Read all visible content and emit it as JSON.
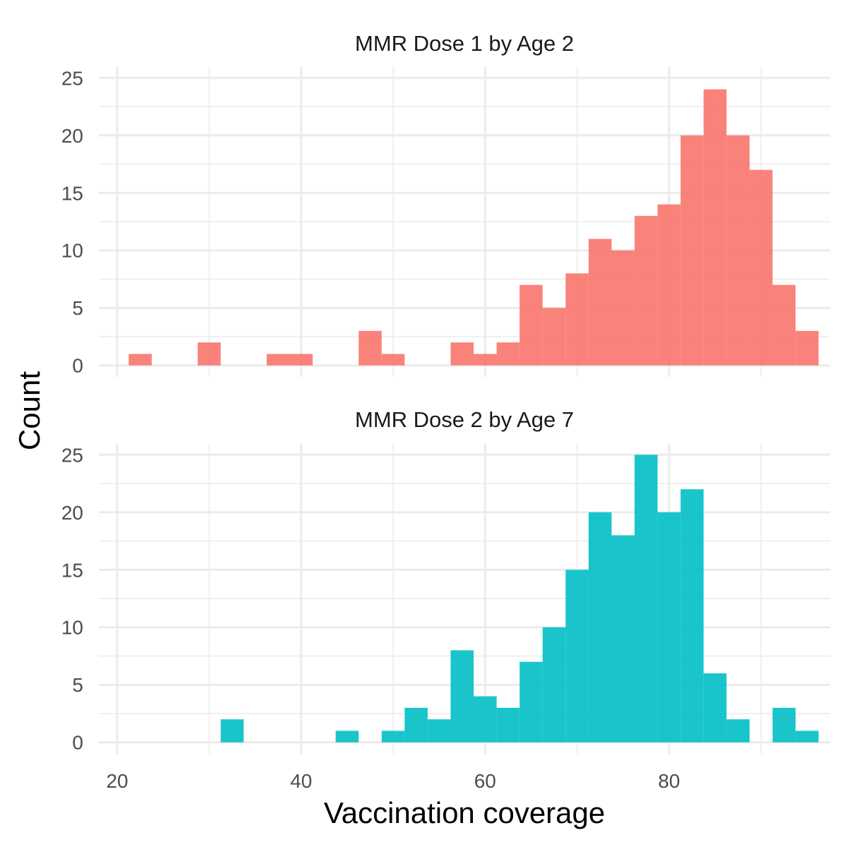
{
  "chart_data": {
    "type": "bar",
    "xlabel": "Vaccination coverage",
    "ylabel": "Count",
    "xlim": [
      18,
      97.5
    ],
    "x_ticks": [
      20,
      40,
      60,
      80
    ],
    "bin_width": 2.5,
    "grid": true,
    "legend": "none",
    "panels": [
      {
        "title": "MMR Dose 1 by Age 2",
        "color": "#F8766D",
        "ylim": [
          -1,
          26
        ],
        "y_ticks": [
          0,
          5,
          10,
          15,
          20,
          25
        ],
        "bins": [
          {
            "x": 22.5,
            "count": 1
          },
          {
            "x": 30.0,
            "count": 2
          },
          {
            "x": 37.5,
            "count": 1
          },
          {
            "x": 40.0,
            "count": 1
          },
          {
            "x": 47.5,
            "count": 3
          },
          {
            "x": 50.0,
            "count": 1
          },
          {
            "x": 57.5,
            "count": 2
          },
          {
            "x": 60.0,
            "count": 1
          },
          {
            "x": 62.5,
            "count": 2
          },
          {
            "x": 65.0,
            "count": 7
          },
          {
            "x": 67.5,
            "count": 5
          },
          {
            "x": 70.0,
            "count": 8
          },
          {
            "x": 72.5,
            "count": 11
          },
          {
            "x": 75.0,
            "count": 10
          },
          {
            "x": 77.5,
            "count": 13
          },
          {
            "x": 80.0,
            "count": 14
          },
          {
            "x": 82.5,
            "count": 20
          },
          {
            "x": 85.0,
            "count": 24
          },
          {
            "x": 87.5,
            "count": 20
          },
          {
            "x": 90.0,
            "count": 17
          },
          {
            "x": 92.5,
            "count": 7
          },
          {
            "x": 95.0,
            "count": 3
          }
        ]
      },
      {
        "title": "MMR Dose 2 by Age 7",
        "color": "#00BFC4",
        "ylim": [
          -1,
          26
        ],
        "y_ticks": [
          0,
          5,
          10,
          15,
          20,
          25
        ],
        "bins": [
          {
            "x": 32.5,
            "count": 2
          },
          {
            "x": 45.0,
            "count": 1
          },
          {
            "x": 50.0,
            "count": 1
          },
          {
            "x": 52.5,
            "count": 3
          },
          {
            "x": 55.0,
            "count": 2
          },
          {
            "x": 57.5,
            "count": 8
          },
          {
            "x": 60.0,
            "count": 4
          },
          {
            "x": 62.5,
            "count": 3
          },
          {
            "x": 65.0,
            "count": 7
          },
          {
            "x": 67.5,
            "count": 10
          },
          {
            "x": 70.0,
            "count": 15
          },
          {
            "x": 72.5,
            "count": 20
          },
          {
            "x": 75.0,
            "count": 18
          },
          {
            "x": 77.5,
            "count": 25
          },
          {
            "x": 80.0,
            "count": 20
          },
          {
            "x": 82.5,
            "count": 22
          },
          {
            "x": 85.0,
            "count": 6
          },
          {
            "x": 87.5,
            "count": 2
          },
          {
            "x": 92.5,
            "count": 3
          },
          {
            "x": 95.0,
            "count": 1
          }
        ]
      }
    ]
  }
}
